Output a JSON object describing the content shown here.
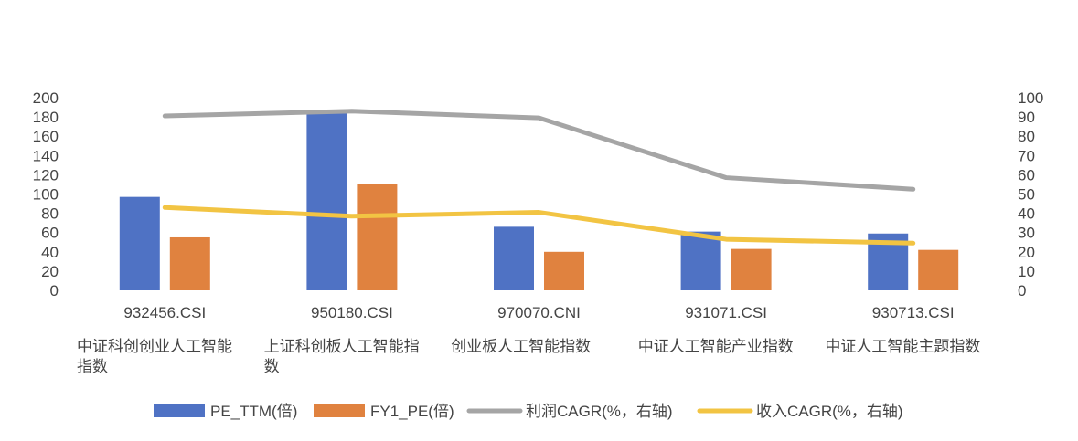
{
  "chart_data": {
    "type": "bar",
    "categories": [
      {
        "code": "932456.CSI",
        "name_lines": [
          "中证科创创业人工智能",
          "指数"
        ]
      },
      {
        "code": "950180.CSI",
        "name_lines": [
          "上证科创板人工智能指",
          "数"
        ]
      },
      {
        "code": "970070.CNI",
        "name_lines": [
          "创业板人工智能指数"
        ]
      },
      {
        "code": "931071.CSI",
        "name_lines": [
          "中证人工智能产业指数"
        ]
      },
      {
        "code": "930713.CSI",
        "name_lines": [
          "中证人工智能主题指数"
        ]
      }
    ],
    "series": [
      {
        "name": "PE_TTM(倍)",
        "type": "bar",
        "axis": "left",
        "color": "#4f72c4",
        "values": [
          97,
          186,
          66,
          61,
          59
        ]
      },
      {
        "name": "FY1_PE(倍)",
        "type": "bar",
        "axis": "left",
        "color": "#e0823f",
        "values": [
          55,
          110,
          40,
          43,
          42
        ]
      },
      {
        "name": "利润CAGR(%，右轴)",
        "type": "line",
        "axis": "right",
        "color": "#a5a5a5",
        "values": [
          90.5,
          93,
          89.5,
          58.5,
          52.5
        ]
      },
      {
        "name": "收入CAGR(%，右轴)",
        "type": "line",
        "axis": "right",
        "color": "#f2c443",
        "values": [
          43,
          38.5,
          40.5,
          26.5,
          24.5
        ]
      }
    ],
    "y_left": {
      "min": 0,
      "max": 200,
      "step": 20,
      "ticks": [
        "0",
        "20",
        "40",
        "60",
        "80",
        "100",
        "120",
        "140",
        "160",
        "180",
        "200"
      ]
    },
    "y_right": {
      "min": 0,
      "max": 100,
      "step": 10,
      "ticks": [
        "0",
        "10",
        "20",
        "30",
        "40",
        "50",
        "60",
        "70",
        "80",
        "90",
        "100"
      ]
    },
    "grid": false,
    "legend_position": "bottom"
  }
}
